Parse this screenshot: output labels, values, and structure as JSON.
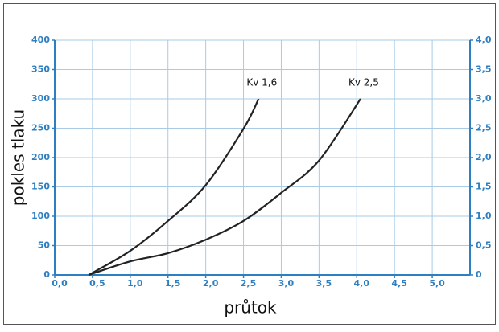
{
  "chart_data": {
    "type": "line",
    "y_label": "pokles tlaku",
    "x_label": "průtok",
    "series": [
      {
        "name": "Kv 1,6",
        "color": "#222222",
        "x": [
          0.45,
          1.0,
          1.5,
          2.0,
          2.5,
          2.7
        ],
        "values": [
          0,
          41,
          92,
          153,
          249,
          300
        ]
      },
      {
        "name": "Kv 2,5",
        "color": "#222222",
        "x": [
          0.45,
          1.0,
          1.5,
          2.0,
          2.5,
          3.0,
          3.5,
          4.05
        ],
        "values": [
          0,
          23,
          37,
          60,
          92,
          140,
          195,
          300
        ]
      }
    ],
    "xlim": [
      0,
      5.5
    ],
    "xticks": [
      {
        "value": 0,
        "label": "0,0"
      },
      {
        "value": 0.5,
        "label": "0,5"
      },
      {
        "value": 1.0,
        "label": "1,0"
      },
      {
        "value": 1.5,
        "label": "1,5"
      },
      {
        "value": 2.0,
        "label": "2,0"
      },
      {
        "value": 2.5,
        "label": "2,5"
      },
      {
        "value": 3.0,
        "label": "3,0"
      },
      {
        "value": 3.5,
        "label": "3,5"
      },
      {
        "value": 4.0,
        "label": "4,0"
      },
      {
        "value": 4.5,
        "label": "4,5"
      },
      {
        "value": 5.0,
        "label": "5,0"
      }
    ],
    "ylim": [
      0,
      400
    ],
    "yticks": [
      0,
      50,
      100,
      150,
      200,
      250,
      300,
      350,
      400
    ],
    "y2lim": [
      0,
      4
    ],
    "y2ticks": [
      0,
      {
        "value": 0.5,
        "label": "0,5"
      },
      {
        "value": 1.0,
        "label": "1,0"
      },
      {
        "value": 1.5,
        "label": "1,5"
      },
      {
        "value": 2.0,
        "label": "2,0"
      },
      {
        "value": 2.5,
        "label": "2,5"
      },
      {
        "value": 3.0,
        "label": "3,0"
      },
      {
        "value": 3.5,
        "label": "3,5"
      },
      {
        "value": 4.0,
        "label": "4,0"
      }
    ],
    "grid": true,
    "axis_color": "#2e7fc1",
    "grid_color": "#a9cbe6"
  }
}
